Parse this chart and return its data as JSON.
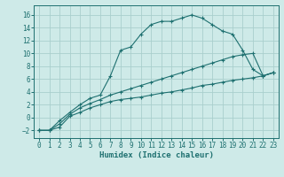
{
  "xlabel": "Humidex (Indice chaleur)",
  "xlim": [
    -0.5,
    23.5
  ],
  "ylim": [
    -3.2,
    17.5
  ],
  "yticks": [
    -2,
    0,
    2,
    4,
    6,
    8,
    10,
    12,
    14,
    16
  ],
  "xticks": [
    0,
    1,
    2,
    3,
    4,
    5,
    6,
    7,
    8,
    9,
    10,
    11,
    12,
    13,
    14,
    15,
    16,
    17,
    18,
    19,
    20,
    21,
    22,
    23
  ],
  "bg_color": "#ceeae8",
  "grid_color": "#aacfcd",
  "line_color": "#1e7070",
  "curve1_x": [
    0,
    1,
    2,
    3,
    4,
    5,
    6,
    7,
    8,
    9,
    10,
    11,
    12,
    13,
    14,
    15,
    16,
    17,
    18,
    19,
    20,
    21,
    22,
    23
  ],
  "curve1_y": [
    -2.0,
    -2.0,
    -0.5,
    0.8,
    2.0,
    3.0,
    3.5,
    6.5,
    10.5,
    11.0,
    13.0,
    14.5,
    15.0,
    15.0,
    15.5,
    16.0,
    15.5,
    14.5,
    13.5,
    13.0,
    10.5,
    7.5,
    6.5,
    7.0
  ],
  "curve2_x": [
    0,
    1,
    2,
    3,
    4,
    5,
    6,
    7,
    8,
    9,
    10,
    11,
    12,
    13,
    14,
    15,
    16,
    17,
    18,
    19,
    20,
    21,
    22,
    23
  ],
  "curve2_y": [
    -2.0,
    -2.0,
    -1.5,
    0.2,
    0.8,
    1.5,
    2.0,
    2.5,
    2.8,
    3.0,
    3.2,
    3.5,
    3.8,
    4.0,
    4.3,
    4.6,
    5.0,
    5.2,
    5.5,
    5.8,
    6.0,
    6.2,
    6.5,
    7.0
  ],
  "curve3_x": [
    0,
    1,
    2,
    3,
    4,
    5,
    6,
    7,
    8,
    9,
    10,
    11,
    12,
    13,
    14,
    15,
    16,
    17,
    18,
    19,
    20,
    21,
    22,
    23
  ],
  "curve3_y": [
    -2.0,
    -2.0,
    -1.0,
    0.5,
    1.5,
    2.2,
    2.8,
    3.5,
    4.0,
    4.5,
    5.0,
    5.5,
    6.0,
    6.5,
    7.0,
    7.5,
    8.0,
    8.5,
    9.0,
    9.5,
    9.8,
    10.0,
    6.5,
    7.0
  ],
  "marker": "+",
  "markersize": 3.5,
  "linewidth": 0.8,
  "xlabel_fontsize": 6.5,
  "tick_fontsize": 5.5
}
